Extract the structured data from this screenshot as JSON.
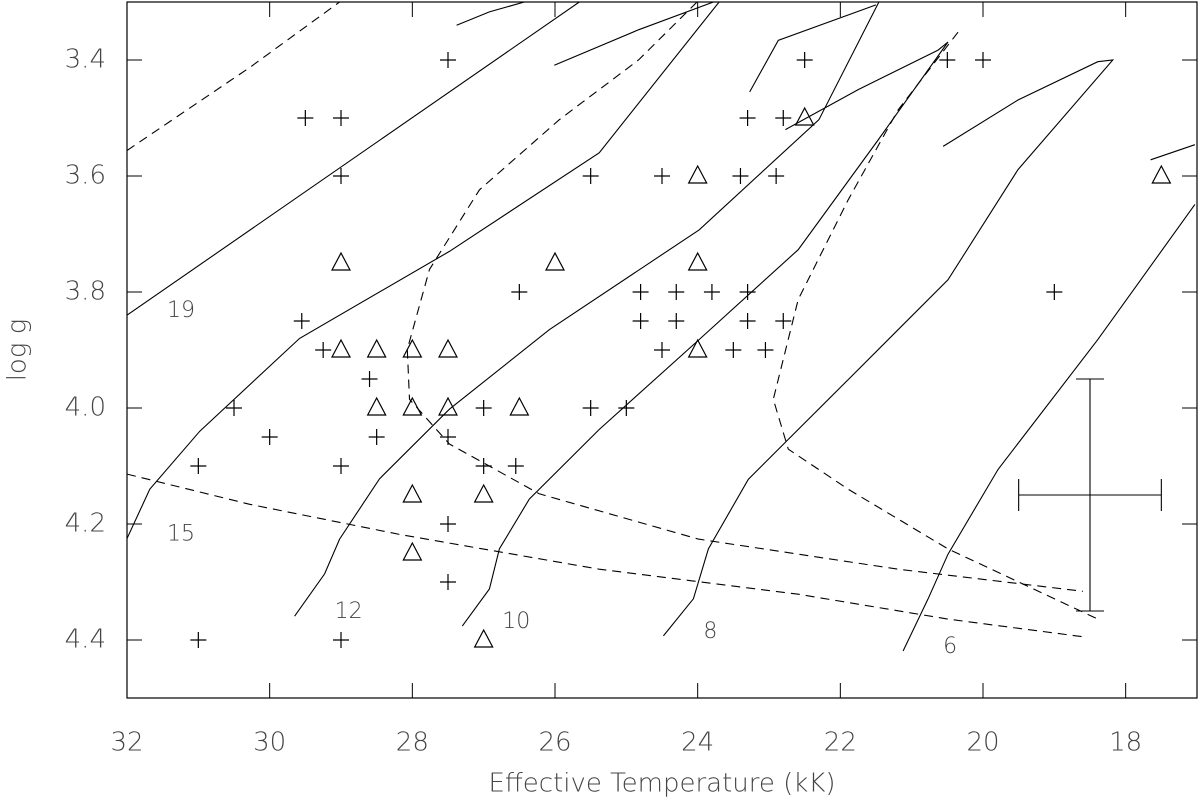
{
  "chart_data": {
    "type": "scatter",
    "x_label": "Effective Temperature (kK)",
    "y_label": "log g",
    "xlim": [
      32,
      17
    ],
    "ylim": [
      4.5,
      3.3
    ],
    "xticks": [
      32,
      30,
      28,
      26,
      24,
      22,
      20,
      18
    ],
    "yticks": [
      3.4,
      3.6,
      3.8,
      {
        "value": 4,
        "label": "4.0"
      },
      4.2,
      4.4
    ],
    "series": [
      {
        "marker": "plus",
        "color": "#000000",
        "x": [
          27.5,
          29.5,
          29.0,
          29.0,
          29.55,
          29.25,
          28.6,
          30.5,
          30.0,
          28.5,
          31.0,
          29.0,
          27.5,
          27.5,
          27.5,
          31.0,
          29.0,
          27.0,
          27.0,
          26.55,
          26.5,
          25.5,
          25.5,
          25.0,
          24.5,
          24.8,
          24.8,
          24.3,
          24.3,
          24.5,
          23.8,
          23.5,
          23.3,
          23.4,
          22.9,
          23.3,
          23.3,
          22.8,
          22.8,
          23.05,
          22.5,
          20.5,
          20.0,
          19.0
        ],
        "y": [
          3.4,
          3.5,
          3.5,
          3.6,
          3.85,
          3.9,
          3.95,
          4.0,
          4.05,
          4.05,
          4.1,
          4.1,
          4.05,
          4.2,
          4.3,
          4.4,
          4.4,
          4.0,
          4.1,
          4.1,
          3.8,
          3.6,
          4.0,
          4.0,
          3.6,
          3.8,
          3.85,
          3.8,
          3.85,
          3.9,
          3.8,
          3.9,
          3.5,
          3.6,
          3.6,
          3.8,
          3.85,
          3.5,
          3.85,
          3.9,
          3.4,
          3.4,
          3.4,
          3.8
        ]
      },
      {
        "marker": "triangle",
        "color": "#000000",
        "x": [
          29.0,
          29.0,
          28.5,
          28.5,
          28.0,
          28.0,
          27.5,
          27.5,
          28.0,
          28.0,
          27.0,
          27.0,
          26.5,
          26.0,
          24.0,
          24.0,
          24.0,
          22.5,
          17.5
        ],
        "y": [
          3.75,
          3.9,
          3.9,
          4.0,
          3.9,
          4.0,
          3.9,
          4.0,
          4.15,
          4.25,
          4.15,
          4.4,
          4.0,
          3.75,
          3.6,
          3.75,
          3.9,
          3.5,
          3.6
        ]
      }
    ],
    "tracks": [
      {
        "label": "19",
        "x": [
          32.0,
          25.66,
          null,
          27.38,
          26.92,
          26.43
        ],
        "y": [
          3.84,
          3.3,
          null,
          3.34,
          3.317,
          3.3
        ]
      },
      {
        "label": "15",
        "x": [
          32.0,
          31.68,
          30.98,
          29.58,
          27.48,
          25.38,
          23.7,
          null,
          26.01,
          24.83,
          23.78
        ],
        "y": [
          4.225,
          4.14,
          4.04,
          3.88,
          3.73,
          3.56,
          3.3,
          null,
          3.409,
          3.348,
          3.3
        ]
      },
      {
        "label": "12",
        "x": [
          29.65,
          29.23,
          29.02,
          28.46,
          27.48,
          26.08,
          23.98,
          22.3,
          21.46,
          null,
          23.27,
          22.87,
          21.5
        ],
        "y": [
          4.359,
          4.286,
          4.226,
          4.122,
          4.002,
          3.865,
          3.693,
          3.503,
          3.3,
          null,
          3.455,
          3.366,
          3.305
        ]
      },
      {
        "label": "10",
        "x": [
          27.3,
          26.92,
          26.78,
          26.36,
          25.38,
          23.98,
          22.59,
          21.47,
          20.49,
          20.63,
          21.75,
          22.77
        ],
        "y": [
          4.376,
          4.312,
          4.243,
          4.157,
          4.037,
          3.882,
          3.727,
          3.538,
          3.369,
          3.383,
          3.451,
          3.52
        ]
      },
      {
        "label": "8",
        "x": [
          24.48,
          24.06,
          23.85,
          23.29,
          21.89,
          20.49,
          19.51,
          18.18,
          18.39,
          19.51,
          20.56
        ],
        "y": [
          4.393,
          4.329,
          4.243,
          4.123,
          3.951,
          3.779,
          3.589,
          3.4,
          3.403,
          3.469,
          3.549
        ]
      },
      {
        "label": "6",
        "x": [
          21.12,
          20.77,
          20.49,
          19.79,
          18.39,
          17.03,
          null,
          17.65,
          17.03
        ],
        "y": [
          4.419,
          4.329,
          4.252,
          4.106,
          3.882,
          3.649,
          null,
          3.572,
          3.546
        ]
      }
    ],
    "isochrones": [
      {
        "x": [
          32.0,
          30.28,
          29.02
        ],
        "y": [
          3.556,
          3.413,
          3.3
        ]
      },
      {
        "x": [
          32.0,
          30.28,
          28.18,
          25.38,
          22.59,
          20.49,
          18.56
        ],
        "y": [
          4.114,
          4.166,
          4.218,
          4.278,
          4.321,
          4.364,
          4.395
        ]
      },
      {
        "x": [
          24.01,
          24.83,
          25.94,
          27.06,
          27.76,
          28.07,
          28.04,
          27.48,
          26.22,
          23.99,
          21.19,
          18.6
        ],
        "y": [
          3.3,
          3.4,
          3.503,
          3.624,
          3.761,
          3.899,
          3.985,
          4.062,
          4.148,
          4.226,
          4.278,
          4.316
        ]
      },
      {
        "x": [
          20.35,
          21.19,
          21.89,
          22.59,
          22.94,
          22.73,
          21.89,
          20.49,
          18.39
        ],
        "y": [
          3.352,
          3.486,
          3.641,
          3.813,
          3.985,
          4.071,
          4.14,
          4.243,
          4.364
        ]
      }
    ],
    "error_bar": {
      "x": 18.5,
      "y": 4.15,
      "xerr": 1,
      "yerr": 0.2
    }
  }
}
